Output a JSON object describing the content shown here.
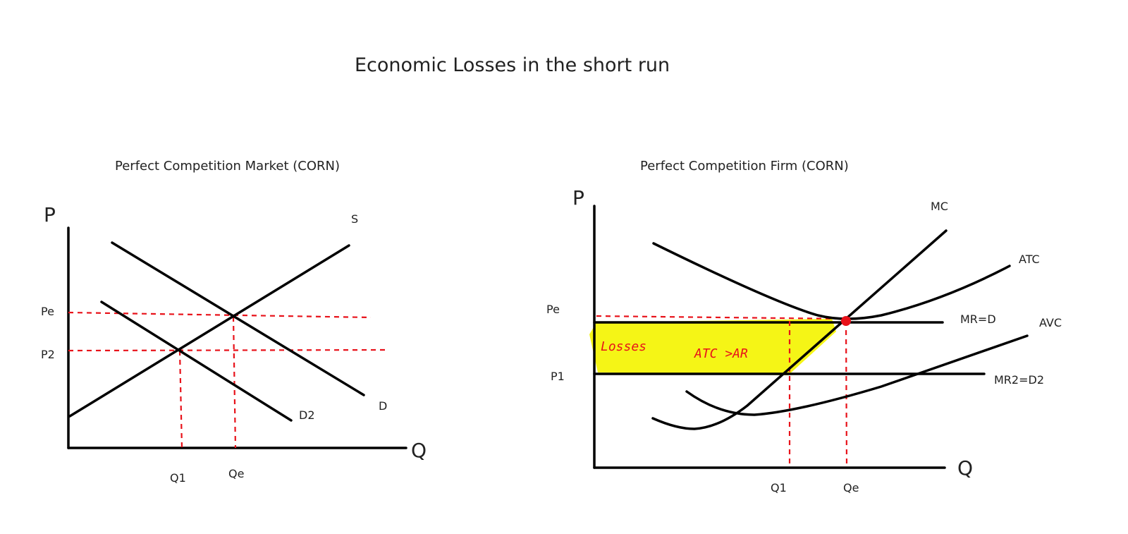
{
  "title": "Economic Losses in the short run",
  "market": {
    "subtitle": "Perfect Competition Market (CORN)",
    "y_axis": "P",
    "x_axis": "Q",
    "price_labels": {
      "pe": "Pe",
      "p2": "P2"
    },
    "quantity_labels": {
      "q1": "Q1",
      "qe": "Qe"
    },
    "curve_labels": {
      "supply": "S",
      "demand": "D",
      "demand2": "D2"
    }
  },
  "firm": {
    "subtitle": "Perfect Competition Firm (CORN)",
    "y_axis": "P",
    "x_axis": "Q",
    "price_labels": {
      "pe": "Pe",
      "p1": "P1"
    },
    "quantity_labels": {
      "q1": "Q1",
      "qe": "Qe"
    },
    "curve_labels": {
      "mc": "MC",
      "atc": "ATC",
      "avc": "AVC",
      "mr": "MR=D",
      "mr2": "MR2=D2"
    },
    "annotation": {
      "losses": "Losses",
      "condition": "ATC >AR"
    },
    "colors": {
      "loss_area": "#f5f516",
      "dashed": "#e8121a",
      "curves": "#000000"
    }
  }
}
